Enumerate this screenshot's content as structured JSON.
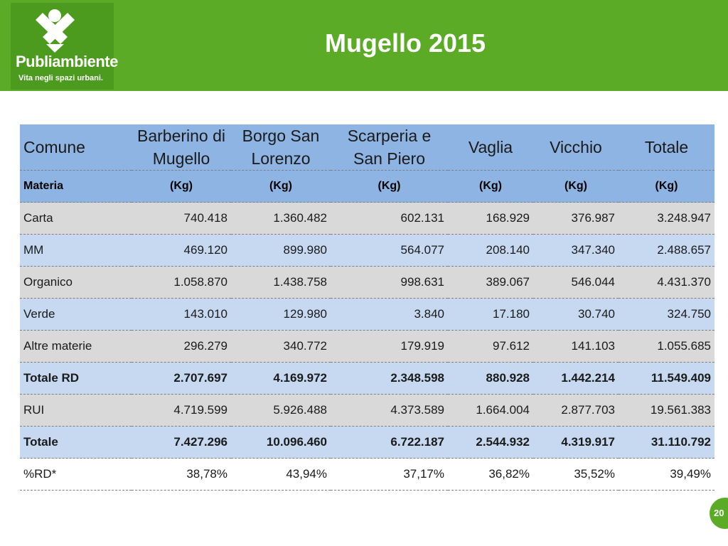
{
  "header": {
    "logo_name": "Publiambiente",
    "logo_tagline": "Vita negli spazi urbani.",
    "title": "Mugello 2015"
  },
  "table": {
    "columns": [
      "Comune",
      "Barberino di Mugello",
      "Borgo San Lorenzo",
      "Scarperia e San Piero",
      "Vaglia",
      "Vicchio",
      "Totale"
    ],
    "units": [
      "Materia",
      "(Kg)",
      "(Kg)",
      "(Kg)",
      "(Kg)",
      "(Kg)",
      "(Kg)"
    ],
    "rows": [
      [
        "Carta",
        "740.418",
        "1.360.482",
        "602.131",
        "168.929",
        "376.987",
        "3.248.947"
      ],
      [
        "MM",
        "469.120",
        "899.980",
        "564.077",
        "208.140",
        "347.340",
        "2.488.657"
      ],
      [
        "Organico",
        "1.058.870",
        "1.438.758",
        "998.631",
        "389.067",
        "546.044",
        "4.431.370"
      ],
      [
        "Verde",
        "143.010",
        "129.980",
        "3.840",
        "17.180",
        "30.740",
        "324.750"
      ],
      [
        "Altre materie",
        "296.279",
        "340.772",
        "179.919",
        "97.612",
        "141.103",
        "1.055.685"
      ],
      [
        "Totale RD",
        "2.707.697",
        "4.169.972",
        "2.348.598",
        "880.928",
        "1.442.214",
        "11.549.409"
      ],
      [
        "RUI",
        "4.719.599",
        "5.926.488",
        "4.373.589",
        "1.664.004",
        "2.877.703",
        "19.561.383"
      ],
      [
        "Totale",
        "7.427.296",
        "10.096.460",
        "6.722.187",
        "2.544.932",
        "4.319.917",
        "31.110.792"
      ],
      [
        "%RD*",
        "38,78%",
        "43,94%",
        "37,17%",
        "36,82%",
        "35,52%",
        "39,49%"
      ]
    ]
  },
  "page_number": "20"
}
